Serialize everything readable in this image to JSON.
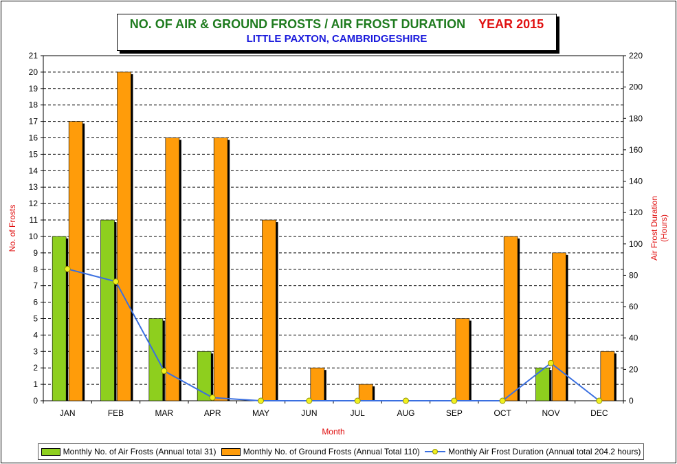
{
  "chart_data": {
    "type": "bar",
    "title": "NO. OF AIR & GROUND FROSTS / AIR FROST DURATION",
    "title_year": "YEAR 2015",
    "subtitle": "LITTLE PAXTON, CAMBRIDGESHIRE",
    "xlabel": "Month",
    "ylabel": "No. of Frosts",
    "y2label_line1": "Air Frost Duration",
    "y2label_line2": "(Hours)",
    "categories": [
      "JAN",
      "FEB",
      "MAR",
      "APR",
      "MAY",
      "JUN",
      "JUL",
      "AUG",
      "SEP",
      "OCT",
      "NOV",
      "DEC"
    ],
    "ylim": [
      0,
      21
    ],
    "y2lim": [
      0,
      220
    ],
    "yticks": [
      "0",
      "1",
      "2",
      "3",
      "4",
      "5",
      "6",
      "7",
      "8",
      "9",
      "10",
      "11",
      "12",
      "13",
      "14",
      "15",
      "16",
      "17",
      "18",
      "19",
      "20",
      "21"
    ],
    "y2ticks": [
      "0",
      "20",
      "40",
      "60",
      "80",
      "100",
      "120",
      "140",
      "160",
      "180",
      "200",
      "220"
    ],
    "grid": true,
    "legend_position": "bottom",
    "series": [
      {
        "name": "Monthly No. of Air Frosts (Annual total 31)",
        "kind": "bar",
        "axis": "left",
        "color": "#8ecf1e",
        "values": [
          10,
          11,
          5,
          3,
          0,
          0,
          0,
          0,
          0,
          0,
          2,
          0
        ]
      },
      {
        "name": "Monthly No. of Ground Frosts (Annual Total 110)",
        "kind": "bar",
        "axis": "left",
        "color": "#ff9c0a",
        "values": [
          17,
          20,
          16,
          16,
          11,
          2,
          1,
          0,
          5,
          10,
          9,
          3
        ]
      },
      {
        "name": "Monthly Air Frost Duration (Annual total 204.2 hours)",
        "kind": "line",
        "axis": "right",
        "color": "#3a6fe0",
        "marker_color": "#f0f020",
        "values": [
          84,
          76,
          19,
          2,
          0,
          0,
          0,
          0,
          0,
          0,
          24,
          0
        ]
      }
    ]
  }
}
